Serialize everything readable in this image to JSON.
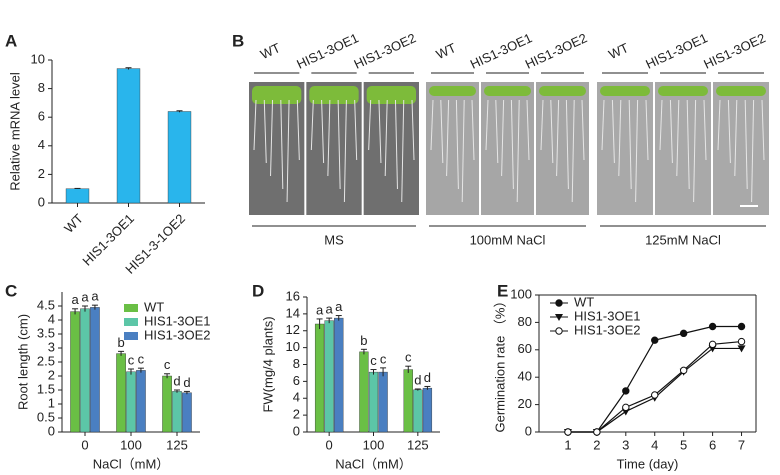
{
  "chart_data": [
    {
      "type": "bar",
      "panel": "A",
      "ylabel": "Relative mRNA level",
      "categories": [
        "WT",
        "HIS1-3OE1",
        "HIS1-3-1OE2"
      ],
      "values": [
        1,
        9.4,
        6.4
      ],
      "errors": [
        0.02,
        0.06,
        0.05
      ],
      "color": "#29b5ec",
      "ylim": [
        0,
        10
      ],
      "yticks": [
        0,
        2,
        4,
        6,
        8,
        10
      ]
    },
    {
      "type": "bar",
      "panel": "C",
      "ylabel": "Root length (cm)",
      "xlabel": "NaCl（mM）",
      "categories": [
        "0",
        "100",
        "125"
      ],
      "series": [
        {
          "name": "WT",
          "color": "#6abf45",
          "values": [
            4.3,
            2.8,
            2.0
          ],
          "errors": [
            0.1,
            0.08,
            0.08
          ],
          "letters": [
            "a",
            "b",
            "c"
          ]
        },
        {
          "name": "HIS1-3OE1",
          "color": "#5cc6a7",
          "values": [
            4.4,
            2.15,
            1.45
          ],
          "errors": [
            0.1,
            0.1,
            0.05
          ],
          "letters": [
            "a",
            "c",
            "d"
          ]
        },
        {
          "name": "HIS1-3OE2",
          "color": "#4a7fc1",
          "values": [
            4.45,
            2.2,
            1.4
          ],
          "errors": [
            0.08,
            0.08,
            0.05
          ],
          "letters": [
            "a",
            "c",
            "d"
          ]
        }
      ],
      "ylim": [
        0,
        5
      ],
      "yticks": [
        0,
        0.5,
        1,
        1.5,
        2,
        2.5,
        3,
        3.5,
        4,
        4.5
      ]
    },
    {
      "type": "bar",
      "panel": "D",
      "ylabel": "FW(mg/4 plants)",
      "xlabel": "NaCl（mM）",
      "categories": [
        "0",
        "100",
        "125"
      ],
      "series": [
        {
          "name": "WT",
          "color": "#6abf45",
          "values": [
            12.8,
            9.5,
            7.4
          ],
          "errors": [
            0.6,
            0.3,
            0.4
          ],
          "letters": [
            "a",
            "b",
            "c"
          ]
        },
        {
          "name": "HIS1-3OE1",
          "color": "#5cc6a7",
          "values": [
            13.2,
            7.1,
            5.0
          ],
          "errors": [
            0.3,
            0.3,
            0.1
          ],
          "letters": [
            "a",
            "c",
            "d"
          ]
        },
        {
          "name": "HIS1-3OE2",
          "color": "#4a7fc1",
          "values": [
            13.5,
            7.1,
            5.2
          ],
          "errors": [
            0.3,
            0.5,
            0.2
          ],
          "letters": [
            "a",
            "c",
            "d"
          ]
        }
      ],
      "ylim": [
        0,
        16
      ],
      "yticks": [
        0,
        2,
        4,
        6,
        8,
        10,
        12,
        14,
        16
      ]
    },
    {
      "type": "line",
      "panel": "E",
      "ylabel": "Germination rate （%）",
      "xlabel": "Time (day)",
      "x": [
        1,
        2,
        3,
        4,
        5,
        6,
        7
      ],
      "series": [
        {
          "name": "WT",
          "color": "#111111",
          "marker": "circle-filled",
          "values": [
            0,
            0,
            30,
            67,
            72,
            77,
            77
          ]
        },
        {
          "name": "HIS1-3OE1",
          "color": "#111111",
          "marker": "triangle-down",
          "values": [
            0,
            0,
            15,
            25,
            44,
            61,
            61
          ]
        },
        {
          "name": "HIS1-3OE2",
          "color": "#111111",
          "marker": "circle-open",
          "values": [
            0,
            0,
            18,
            27,
            45,
            64,
            66
          ]
        }
      ],
      "xlim": [
        0,
        7.5
      ],
      "xticks": [
        1,
        2,
        3,
        4,
        5,
        6,
        7
      ],
      "ylim": [
        0,
        100
      ],
      "yticks": [
        0,
        20,
        40,
        60,
        80,
        100
      ]
    }
  ],
  "panel_b": {
    "panel": "B",
    "groups": [
      {
        "lines": [
          "WT",
          "HIS1-3OE1",
          "HIS1-3OE2"
        ],
        "condition": "MS"
      },
      {
        "lines": [
          "WT",
          "HIS1-3OE1",
          "HIS1-3OE2"
        ],
        "condition": "100mM NaCl"
      },
      {
        "lines": [
          "WT",
          "HIS1-3OE1",
          "HIS1-3OE2"
        ],
        "condition": "125mM NaCl"
      }
    ]
  }
}
